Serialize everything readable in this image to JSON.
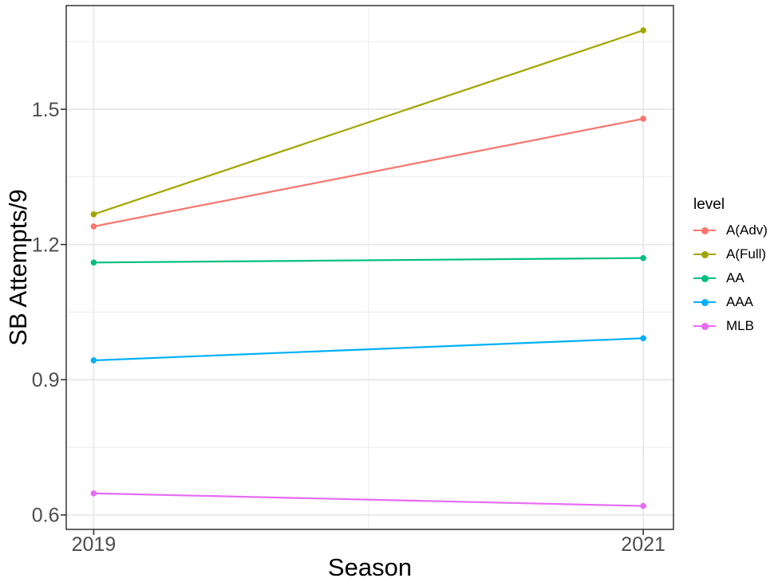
{
  "figure": {
    "background": "#ffffff",
    "panel_background": "#ffffff",
    "panel_border_color": "#333333",
    "grid_major_color": "#e6e6e6",
    "grid_minor_color": "#efefef",
    "tick_mark_color": "#333333",
    "tick_label_color": "#4d4d4d",
    "axis_title_color": "#000000"
  },
  "chart_data": {
    "type": "line",
    "title": "",
    "xlabel": "Season",
    "ylabel": "SB Attempts/9",
    "x": [
      2019,
      2021
    ],
    "x_tick_labels": [
      "2019",
      "2021"
    ],
    "x_minor_breaks": [
      2020
    ],
    "y_ticks": [
      1.5,
      1.2,
      0.9,
      0.6
    ],
    "y_tick_labels": [
      "1.5",
      "1.2",
      "0.9",
      "0.6"
    ],
    "y_minor_breaks": [
      1.65,
      1.35,
      1.05,
      0.75
    ],
    "xlim": [
      2018.9,
      2021.11
    ],
    "ylim": [
      0.568,
      1.73
    ],
    "grid": true,
    "legend_title": "level",
    "legend_position": "right",
    "series": [
      {
        "name": "A(Adv)",
        "color": "#F8766D",
        "values": [
          1.24,
          1.479
        ]
      },
      {
        "name": "A(Full)",
        "color": "#A3A500",
        "values": [
          1.267,
          1.675
        ]
      },
      {
        "name": "AA",
        "color": "#00BF7D",
        "values": [
          1.16,
          1.17
        ]
      },
      {
        "name": "AAA",
        "color": "#00B0F6",
        "values": [
          0.943,
          0.992
        ]
      },
      {
        "name": "MLB",
        "color": "#E76BF3",
        "values": [
          0.648,
          0.62
        ]
      }
    ]
  }
}
